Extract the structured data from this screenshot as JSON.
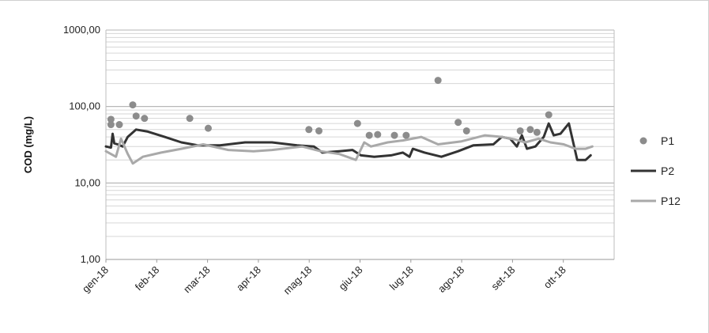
{
  "chart_data": {
    "type": "line",
    "y_scale": "log",
    "ylabel": "COD (mg/L)",
    "ylim": [
      1,
      1000
    ],
    "y_ticks": [
      "1,00",
      "10,00",
      "100,00",
      "1000,00"
    ],
    "y_tick_values": [
      1,
      10,
      100,
      1000
    ],
    "x_ticks": [
      "gen-18",
      "feb-18",
      "mar-18",
      "apr-18",
      "mag-18",
      "giu-18",
      "lug-18",
      "ago-18",
      "set-18",
      "ott-18"
    ],
    "x_domain": [
      "2018-01-01",
      "2018-10-31"
    ],
    "grid": true,
    "legend_position": "right",
    "series": [
      {
        "name": "P1",
        "style": "markers",
        "color": "#8c8c8c",
        "points": [
          [
            "2018-01-04",
            68
          ],
          [
            "2018-01-04",
            58
          ],
          [
            "2018-01-09",
            58
          ],
          [
            "2018-01-17",
            105
          ],
          [
            "2018-01-19",
            75
          ],
          [
            "2018-01-24",
            70
          ],
          [
            "2018-02-20",
            70
          ],
          [
            "2018-03-03",
            52
          ],
          [
            "2018-05-02",
            50
          ],
          [
            "2018-05-08",
            48
          ],
          [
            "2018-05-31",
            60
          ],
          [
            "2018-06-07",
            42
          ],
          [
            "2018-06-12",
            43
          ],
          [
            "2018-06-22",
            42
          ],
          [
            "2018-06-29",
            42
          ],
          [
            "2018-07-18",
            220
          ],
          [
            "2018-07-30",
            62
          ],
          [
            "2018-08-04",
            48
          ],
          [
            "2018-09-05",
            48
          ],
          [
            "2018-09-11",
            50
          ],
          [
            "2018-09-15",
            46
          ],
          [
            "2018-09-22",
            78
          ]
        ]
      },
      {
        "name": "P2",
        "style": "line",
        "color": "#333333",
        "points": [
          [
            "2018-01-01",
            30
          ],
          [
            "2018-01-04",
            29
          ],
          [
            "2018-01-05",
            44
          ],
          [
            "2018-01-06",
            33
          ],
          [
            "2018-01-08",
            32
          ],
          [
            "2018-01-11",
            30
          ],
          [
            "2018-01-14",
            40
          ],
          [
            "2018-01-19",
            50
          ],
          [
            "2018-01-26",
            47
          ],
          [
            "2018-02-05",
            40
          ],
          [
            "2018-02-15",
            34
          ],
          [
            "2018-02-25",
            31
          ],
          [
            "2018-03-10",
            31
          ],
          [
            "2018-03-25",
            34
          ],
          [
            "2018-04-10",
            34
          ],
          [
            "2018-04-25",
            31
          ],
          [
            "2018-05-05",
            30
          ],
          [
            "2018-05-10",
            25
          ],
          [
            "2018-05-20",
            26
          ],
          [
            "2018-05-28",
            27
          ],
          [
            "2018-06-02",
            23
          ],
          [
            "2018-06-10",
            22
          ],
          [
            "2018-06-20",
            23
          ],
          [
            "2018-06-27",
            25
          ],
          [
            "2018-07-01",
            22
          ],
          [
            "2018-07-03",
            28
          ],
          [
            "2018-07-10",
            25
          ],
          [
            "2018-07-20",
            22
          ],
          [
            "2018-07-30",
            26
          ],
          [
            "2018-08-08",
            31
          ],
          [
            "2018-08-20",
            32
          ],
          [
            "2018-08-25",
            40
          ],
          [
            "2018-08-30",
            38
          ],
          [
            "2018-09-03",
            30
          ],
          [
            "2018-09-06",
            42
          ],
          [
            "2018-09-09",
            28
          ],
          [
            "2018-09-14",
            30
          ],
          [
            "2018-09-19",
            40
          ],
          [
            "2018-09-22",
            60
          ],
          [
            "2018-09-25",
            42
          ],
          [
            "2018-09-29",
            44
          ],
          [
            "2018-10-04",
            60
          ],
          [
            "2018-10-09",
            20
          ],
          [
            "2018-10-14",
            20
          ],
          [
            "2018-10-17",
            23
          ]
        ]
      },
      {
        "name": "P12",
        "style": "line",
        "color": "#a9a9a9",
        "points": [
          [
            "2018-01-01",
            26
          ],
          [
            "2018-01-07",
            22
          ],
          [
            "2018-01-10",
            38
          ],
          [
            "2018-01-14",
            24
          ],
          [
            "2018-01-17",
            18
          ],
          [
            "2018-01-23",
            22
          ],
          [
            "2018-02-03",
            25
          ],
          [
            "2018-02-15",
            28
          ],
          [
            "2018-02-28",
            32
          ],
          [
            "2018-03-15",
            27
          ],
          [
            "2018-03-30",
            26
          ],
          [
            "2018-04-10",
            27
          ],
          [
            "2018-04-28",
            30
          ],
          [
            "2018-05-09",
            26
          ],
          [
            "2018-05-20",
            24
          ],
          [
            "2018-05-30",
            20
          ],
          [
            "2018-06-04",
            34
          ],
          [
            "2018-06-08",
            30
          ],
          [
            "2018-06-18",
            34
          ],
          [
            "2018-06-27",
            36
          ],
          [
            "2018-07-08",
            40
          ],
          [
            "2018-07-18",
            32
          ],
          [
            "2018-08-01",
            35
          ],
          [
            "2018-08-15",
            42
          ],
          [
            "2018-08-25",
            40
          ],
          [
            "2018-09-02",
            37
          ],
          [
            "2018-09-08",
            34
          ],
          [
            "2018-09-16",
            38
          ],
          [
            "2018-09-23",
            34
          ],
          [
            "2018-10-01",
            32
          ],
          [
            "2018-10-08",
            28
          ],
          [
            "2018-10-14",
            28
          ],
          [
            "2018-10-18",
            30
          ]
        ]
      }
    ]
  }
}
